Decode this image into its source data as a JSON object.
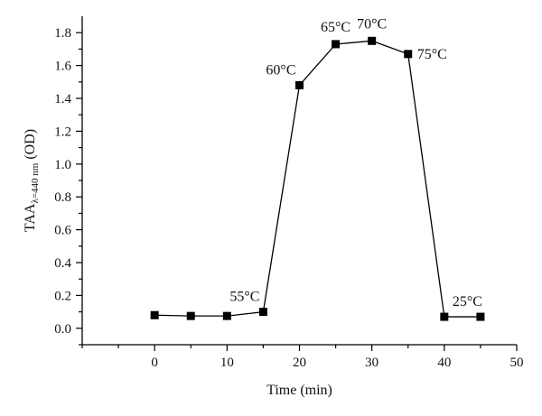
{
  "chart_data": {
    "type": "line",
    "xlabel": "Time (min)",
    "ylabel": {
      "main": "TAA",
      "subscript": "λ=440 nm",
      "unit": "(OD)"
    },
    "xlim": [
      -10,
      50
    ],
    "ylim": [
      -0.1,
      1.9
    ],
    "x_ticks": [
      0,
      10,
      20,
      30,
      40,
      50
    ],
    "y_ticks": [
      0.0,
      0.2,
      0.4,
      0.6,
      0.8,
      1.0,
      1.2,
      1.4,
      1.6,
      1.8
    ],
    "x_tick_labels": [
      "0",
      "10",
      "20",
      "30",
      "40",
      "50"
    ],
    "y_tick_labels": [
      "0.0",
      "0.2",
      "0.4",
      "0.6",
      "0.8",
      "1.0",
      "1.2",
      "1.4",
      "1.6",
      "1.8"
    ],
    "grid": false,
    "series": [
      {
        "marker": "square",
        "color": "#000000",
        "x": [
          0,
          5,
          10,
          15,
          20,
          25,
          30,
          35,
          40,
          45
        ],
        "y": [
          0.08,
          0.075,
          0.075,
          0.1,
          1.48,
          1.73,
          1.75,
          1.67,
          0.07,
          0.07
        ]
      }
    ],
    "annotations": [
      {
        "text": "55°C",
        "x": 15,
        "y": 0.1,
        "position": "above-left"
      },
      {
        "text": "60°C",
        "x": 20,
        "y": 1.48,
        "position": "above-left"
      },
      {
        "text": "65°C",
        "x": 25,
        "y": 1.73,
        "position": "above"
      },
      {
        "text": "70°C",
        "x": 30,
        "y": 1.75,
        "position": "above"
      },
      {
        "text": "75°C",
        "x": 35,
        "y": 1.67,
        "position": "right"
      },
      {
        "text": "25°C",
        "x": 40,
        "y": 0.07,
        "position": "above-right"
      }
    ]
  }
}
